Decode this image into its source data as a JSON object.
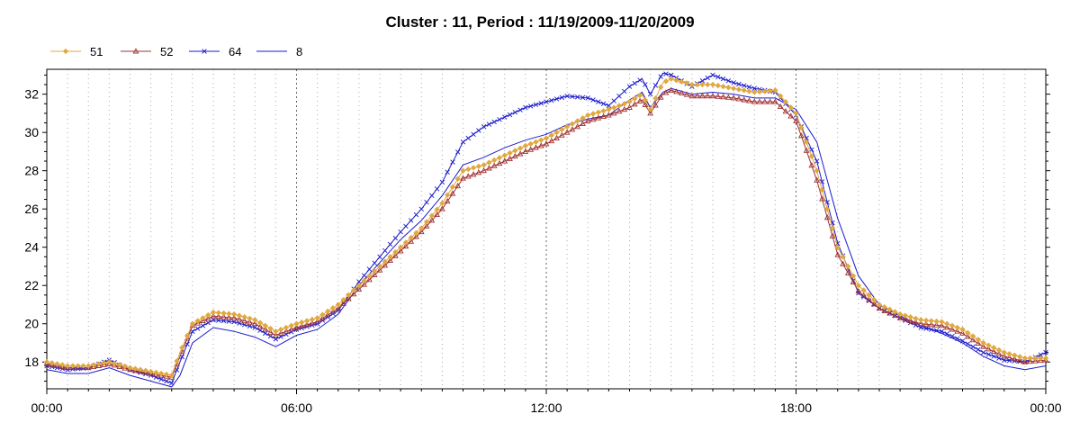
{
  "chart_data": {
    "type": "line",
    "title": "Cluster : 11, Period : 11/19/2009-11/20/2009",
    "xlabel": "",
    "ylabel": "",
    "x_range_hours": [
      0,
      24
    ],
    "ylim": [
      16.6,
      33.3
    ],
    "x_ticks": [
      {
        "hour": 0,
        "label": "00:00"
      },
      {
        "hour": 6,
        "label": "06:00"
      },
      {
        "hour": 12,
        "label": "12:00"
      },
      {
        "hour": 18,
        "label": "18:00"
      },
      {
        "hour": 24,
        "label": "00:00"
      }
    ],
    "y_ticks": [
      18,
      20,
      22,
      24,
      26,
      28,
      30,
      32
    ],
    "grid": {
      "major_vertical_dotted": true,
      "horizontal": false
    },
    "legend_position": "top-left",
    "series": [
      {
        "name": "51",
        "color": "#e0a840",
        "marker": "diamond",
        "points": [
          [
            0,
            18.0
          ],
          [
            0.5,
            17.8
          ],
          [
            1.0,
            17.8
          ],
          [
            1.5,
            18.0
          ],
          [
            2.0,
            17.7
          ],
          [
            2.5,
            17.5
          ],
          [
            3.0,
            17.3
          ],
          [
            3.2,
            18.5
          ],
          [
            3.5,
            20.0
          ],
          [
            4.0,
            20.6
          ],
          [
            4.5,
            20.5
          ],
          [
            5.0,
            20.2
          ],
          [
            5.5,
            19.6
          ],
          [
            6.0,
            20.0
          ],
          [
            6.5,
            20.3
          ],
          [
            7.0,
            21.0
          ],
          [
            7.5,
            22.0
          ],
          [
            8.0,
            23.0
          ],
          [
            8.5,
            24.0
          ],
          [
            9.0,
            25.0
          ],
          [
            9.5,
            26.3
          ],
          [
            10.0,
            28.0
          ],
          [
            10.5,
            28.3
          ],
          [
            11.0,
            28.8
          ],
          [
            11.5,
            29.3
          ],
          [
            12.0,
            29.7
          ],
          [
            12.5,
            30.3
          ],
          [
            13.0,
            30.9
          ],
          [
            13.5,
            31.2
          ],
          [
            14.0,
            31.6
          ],
          [
            14.3,
            32.0
          ],
          [
            14.5,
            31.2
          ],
          [
            14.8,
            32.6
          ],
          [
            15.0,
            32.8
          ],
          [
            15.5,
            32.5
          ],
          [
            16.0,
            32.5
          ],
          [
            16.5,
            32.3
          ],
          [
            17.0,
            32.1
          ],
          [
            17.5,
            32.2
          ],
          [
            18.0,
            31.0
          ],
          [
            18.5,
            28.0
          ],
          [
            19.0,
            24.0
          ],
          [
            19.5,
            22.0
          ],
          [
            20.0,
            21.0
          ],
          [
            20.5,
            20.5
          ],
          [
            21.0,
            20.2
          ],
          [
            21.5,
            20.1
          ],
          [
            22.0,
            19.7
          ],
          [
            22.5,
            19.0
          ],
          [
            23.0,
            18.5
          ],
          [
            23.5,
            18.2
          ],
          [
            24.0,
            18.2
          ]
        ]
      },
      {
        "name": "52",
        "color": "#a03030",
        "marker": "triangle",
        "points": [
          [
            0,
            17.9
          ],
          [
            0.5,
            17.7
          ],
          [
            1.0,
            17.7
          ],
          [
            1.5,
            17.9
          ],
          [
            2.0,
            17.6
          ],
          [
            2.5,
            17.4
          ],
          [
            3.0,
            17.2
          ],
          [
            3.2,
            18.3
          ],
          [
            3.5,
            19.9
          ],
          [
            4.0,
            20.4
          ],
          [
            4.5,
            20.3
          ],
          [
            5.0,
            20.0
          ],
          [
            5.5,
            19.4
          ],
          [
            6.0,
            19.8
          ],
          [
            6.5,
            20.1
          ],
          [
            7.0,
            20.8
          ],
          [
            7.5,
            21.8
          ],
          [
            8.0,
            22.8
          ],
          [
            8.5,
            23.8
          ],
          [
            9.0,
            24.8
          ],
          [
            9.5,
            26.0
          ],
          [
            10.0,
            27.6
          ],
          [
            10.5,
            28.0
          ],
          [
            11.0,
            28.5
          ],
          [
            11.5,
            29.0
          ],
          [
            12.0,
            29.4
          ],
          [
            12.5,
            30.0
          ],
          [
            13.0,
            30.6
          ],
          [
            13.5,
            30.9
          ],
          [
            14.0,
            31.3
          ],
          [
            14.3,
            31.7
          ],
          [
            14.5,
            31.0
          ],
          [
            14.8,
            32.0
          ],
          [
            15.0,
            32.2
          ],
          [
            15.5,
            31.9
          ],
          [
            16.0,
            31.9
          ],
          [
            16.5,
            31.8
          ],
          [
            17.0,
            31.6
          ],
          [
            17.5,
            31.6
          ],
          [
            18.0,
            30.6
          ],
          [
            18.5,
            27.5
          ],
          [
            19.0,
            23.6
          ],
          [
            19.5,
            21.7
          ],
          [
            20.0,
            20.8
          ],
          [
            20.5,
            20.3
          ],
          [
            21.0,
            20.0
          ],
          [
            21.5,
            19.9
          ],
          [
            22.0,
            19.5
          ],
          [
            22.5,
            18.8
          ],
          [
            23.0,
            18.3
          ],
          [
            23.5,
            18.0
          ],
          [
            24.0,
            18.1
          ]
        ]
      },
      {
        "name": "64",
        "color": "#1a1acc",
        "marker": "x",
        "points": [
          [
            0,
            17.8
          ],
          [
            0.5,
            17.6
          ],
          [
            1.0,
            17.7
          ],
          [
            1.5,
            18.1
          ],
          [
            2.0,
            17.6
          ],
          [
            2.5,
            17.3
          ],
          [
            3.0,
            16.9
          ],
          [
            3.2,
            18.0
          ],
          [
            3.5,
            19.6
          ],
          [
            4.0,
            20.2
          ],
          [
            4.5,
            20.1
          ],
          [
            5.0,
            19.8
          ],
          [
            5.5,
            19.2
          ],
          [
            6.0,
            19.7
          ],
          [
            6.5,
            20.0
          ],
          [
            7.0,
            20.7
          ],
          [
            7.5,
            22.2
          ],
          [
            8.0,
            23.5
          ],
          [
            8.5,
            24.8
          ],
          [
            9.0,
            26.0
          ],
          [
            9.5,
            27.4
          ],
          [
            10.0,
            29.5
          ],
          [
            10.5,
            30.3
          ],
          [
            11.0,
            30.8
          ],
          [
            11.5,
            31.3
          ],
          [
            12.0,
            31.6
          ],
          [
            12.5,
            31.9
          ],
          [
            13.0,
            31.8
          ],
          [
            13.5,
            31.4
          ],
          [
            14.0,
            32.4
          ],
          [
            14.3,
            32.8
          ],
          [
            14.5,
            32.0
          ],
          [
            14.8,
            33.1
          ],
          [
            15.0,
            33.0
          ],
          [
            15.5,
            32.4
          ],
          [
            16.0,
            33.0
          ],
          [
            16.5,
            32.6
          ],
          [
            17.0,
            32.3
          ],
          [
            17.5,
            32.1
          ],
          [
            18.0,
            30.9
          ],
          [
            18.5,
            28.5
          ],
          [
            19.0,
            24.2
          ],
          [
            19.5,
            21.6
          ],
          [
            20.0,
            20.8
          ],
          [
            20.5,
            20.3
          ],
          [
            21.0,
            19.8
          ],
          [
            21.5,
            19.6
          ],
          [
            22.0,
            19.1
          ],
          [
            22.5,
            18.5
          ],
          [
            23.0,
            18.1
          ],
          [
            23.5,
            18.0
          ],
          [
            24.0,
            18.5
          ]
        ]
      },
      {
        "name": "8",
        "color": "#1a1acc",
        "marker": "none",
        "points": [
          [
            0,
            17.6
          ],
          [
            0.5,
            17.4
          ],
          [
            1.0,
            17.4
          ],
          [
            1.5,
            17.7
          ],
          [
            2.0,
            17.3
          ],
          [
            2.5,
            17.0
          ],
          [
            3.0,
            16.7
          ],
          [
            3.2,
            17.3
          ],
          [
            3.5,
            19.0
          ],
          [
            4.0,
            19.8
          ],
          [
            4.5,
            19.6
          ],
          [
            5.0,
            19.3
          ],
          [
            5.5,
            18.8
          ],
          [
            6.0,
            19.4
          ],
          [
            6.5,
            19.7
          ],
          [
            7.0,
            20.5
          ],
          [
            7.5,
            22.0
          ],
          [
            8.0,
            23.2
          ],
          [
            8.5,
            24.4
          ],
          [
            9.0,
            25.4
          ],
          [
            9.5,
            26.7
          ],
          [
            10.0,
            28.3
          ],
          [
            10.5,
            28.7
          ],
          [
            11.0,
            29.2
          ],
          [
            11.5,
            29.6
          ],
          [
            12.0,
            29.9
          ],
          [
            12.5,
            30.4
          ],
          [
            13.0,
            30.7
          ],
          [
            13.5,
            30.9
          ],
          [
            14.0,
            31.7
          ],
          [
            14.3,
            32.1
          ],
          [
            14.5,
            31.3
          ],
          [
            14.8,
            32.1
          ],
          [
            15.0,
            32.3
          ],
          [
            15.5,
            32.0
          ],
          [
            16.0,
            32.1
          ],
          [
            16.5,
            32.0
          ],
          [
            17.0,
            31.8
          ],
          [
            17.5,
            31.8
          ],
          [
            18.0,
            31.2
          ],
          [
            18.5,
            29.5
          ],
          [
            19.0,
            25.5
          ],
          [
            19.5,
            22.5
          ],
          [
            20.0,
            21.0
          ],
          [
            20.5,
            20.4
          ],
          [
            21.0,
            19.9
          ],
          [
            21.5,
            19.5
          ],
          [
            22.0,
            19.0
          ],
          [
            22.5,
            18.3
          ],
          [
            23.0,
            17.8
          ],
          [
            23.5,
            17.6
          ],
          [
            24.0,
            17.8
          ]
        ]
      }
    ]
  }
}
